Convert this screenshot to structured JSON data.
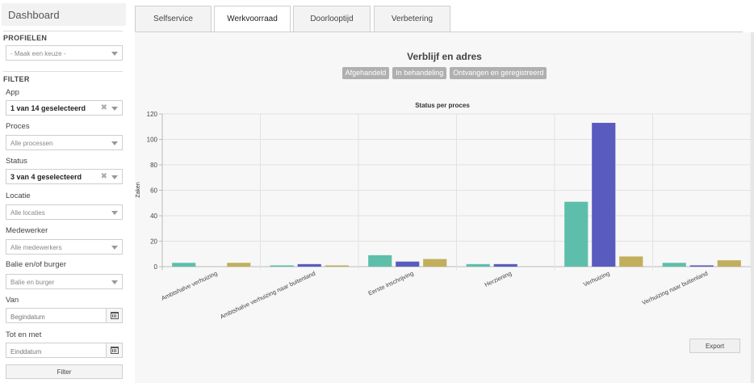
{
  "sidebar": {
    "title": "Dashboard",
    "profielen_heading": "PROFIELEN",
    "profiel_select": "- Maak een keuze -",
    "filter_heading": "FILTER",
    "filters": [
      {
        "label": "App",
        "value": "1 van 14 geselecteerd",
        "bold": true
      },
      {
        "label": "Proces",
        "value": "Alle processen",
        "bold": false
      },
      {
        "label": "Status",
        "value": "3 van 4 geselecteerd",
        "bold": true
      },
      {
        "label": "Locatie",
        "value": "Alle locaties",
        "bold": false
      },
      {
        "label": "Medewerker",
        "value": "Alle medewerkers",
        "bold": false
      },
      {
        "label": "Balie en/of burger",
        "value": "Balie en burger",
        "bold": false
      }
    ],
    "van_label": "Van",
    "van_placeholder": "Begindatum",
    "tot_label": "Tot en met",
    "tot_placeholder": "Einddatum",
    "filter_button": "Filter",
    "clear_glyph": "✖"
  },
  "tabs": [
    {
      "label": "Selfservice",
      "active": false
    },
    {
      "label": "Werkvoorraad",
      "active": true
    },
    {
      "label": "Doorlooptijd",
      "active": false
    },
    {
      "label": "Verbetering",
      "active": false
    }
  ],
  "main": {
    "heading": "Verblijf en adres",
    "toggles": [
      "Afgehandeld",
      "In behandeling",
      "Ontvangen en geregistreerd"
    ],
    "export_button": "Export"
  },
  "chart_data": {
    "type": "bar",
    "title": "Status per proces",
    "ylabel": "Zaken",
    "xlabel": "",
    "ylim": [
      0,
      120
    ],
    "yticks": [
      0,
      20,
      40,
      60,
      80,
      100,
      120
    ],
    "grid": true,
    "legend_position": "bottom",
    "categories": [
      "Ambtshalve verhuizing",
      "Ambtshalve verhuizing naar buitenland",
      "Eerste inschrijving",
      "Herziening",
      "Verhuizing",
      "Verhuizing naar buitenland"
    ],
    "series": [
      {
        "name": "Afgehandeld",
        "color": "#5dbfab",
        "values": [
          3,
          1,
          9,
          2,
          51,
          3
        ]
      },
      {
        "name": "In behandeling",
        "color": "#5a5bbf",
        "values": [
          0,
          2,
          4,
          2,
          113,
          1
        ]
      },
      {
        "name": "Ontvangen en geregistreerd",
        "color": "#c1af5e",
        "values": [
          3,
          1,
          6,
          0,
          8,
          5
        ]
      }
    ]
  }
}
